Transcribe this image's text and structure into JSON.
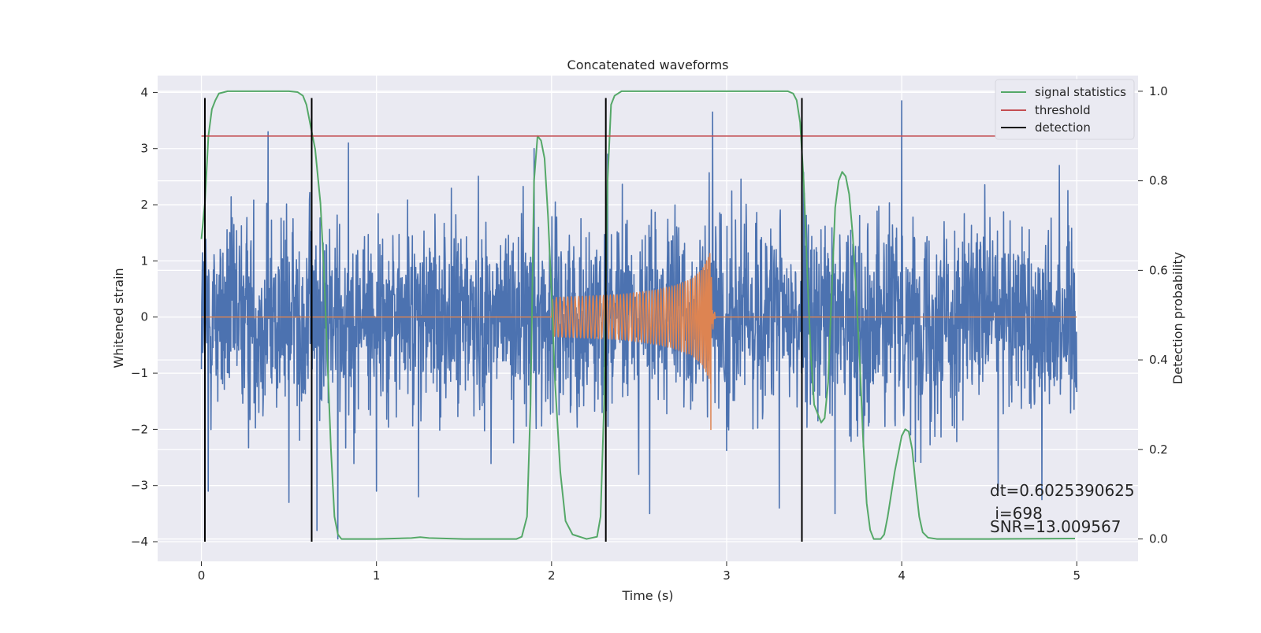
{
  "chart_data": {
    "type": "line",
    "title": "Concatenated waveforms",
    "xlabel": "Time (s)",
    "ylabel_left": "Whitened strain",
    "ylabel_right": "Detection probability",
    "xlim": [
      -0.25,
      5.35
    ],
    "ylim_left": [
      -4.35,
      4.3
    ],
    "ylim_right": [
      -0.05,
      1.035
    ],
    "x_ticks": [
      0,
      1,
      2,
      3,
      4,
      5
    ],
    "y_left_ticks": [
      4,
      3,
      2,
      1,
      0,
      -1,
      -2,
      -3,
      -4
    ],
    "y_right_ticks": [
      1.0,
      0.8,
      0.6,
      0.4,
      0.2,
      0.0
    ],
    "x_tick_labels": [
      "0",
      "1",
      "2",
      "3",
      "4",
      "5"
    ],
    "y_left_tick_labels": [
      "4",
      "3",
      "2",
      "1",
      "0",
      "−1",
      "−2",
      "−3",
      "−4"
    ],
    "y_right_tick_labels": [
      "1.0",
      "0.8",
      "0.6",
      "0.4",
      "0.2",
      "0.0"
    ],
    "grid": true,
    "legend_position": "top-right",
    "colors": {
      "background": "#eaeaf2",
      "grid": "#ffffff",
      "strain": "#4c72b0",
      "template": "#dd8452",
      "signal_statistics": "#55a868",
      "threshold": "#c44e52",
      "detection": "#000000"
    },
    "series": [
      {
        "name": "signal statistics",
        "axis": "right",
        "points": [
          [
            0.0,
            0.67
          ],
          [
            0.02,
            0.75
          ],
          [
            0.04,
            0.9
          ],
          [
            0.06,
            0.96
          ],
          [
            0.08,
            0.98
          ],
          [
            0.1,
            0.995
          ],
          [
            0.15,
            1.0
          ],
          [
            0.5,
            1.0
          ],
          [
            0.55,
            0.998
          ],
          [
            0.58,
            0.99
          ],
          [
            0.6,
            0.97
          ],
          [
            0.62,
            0.93
          ],
          [
            0.65,
            0.87
          ],
          [
            0.68,
            0.75
          ],
          [
            0.7,
            0.6
          ],
          [
            0.72,
            0.4
          ],
          [
            0.74,
            0.2
          ],
          [
            0.76,
            0.05
          ],
          [
            0.78,
            0.01
          ],
          [
            0.8,
            0.0
          ],
          [
            1.0,
            0.0
          ],
          [
            1.2,
            0.002
          ],
          [
            1.25,
            0.004
          ],
          [
            1.3,
            0.002
          ],
          [
            1.5,
            0.0
          ],
          [
            1.8,
            0.0
          ],
          [
            1.83,
            0.005
          ],
          [
            1.86,
            0.05
          ],
          [
            1.88,
            0.3
          ],
          [
            1.9,
            0.8
          ],
          [
            1.92,
            0.9
          ],
          [
            1.94,
            0.89
          ],
          [
            1.96,
            0.85
          ],
          [
            1.98,
            0.72
          ],
          [
            2.0,
            0.55
          ],
          [
            2.02,
            0.35
          ],
          [
            2.05,
            0.15
          ],
          [
            2.08,
            0.04
          ],
          [
            2.12,
            0.01
          ],
          [
            2.2,
            0.0
          ],
          [
            2.26,
            0.005
          ],
          [
            2.28,
            0.05
          ],
          [
            2.3,
            0.3
          ],
          [
            2.32,
            0.8
          ],
          [
            2.34,
            0.97
          ],
          [
            2.36,
            0.99
          ],
          [
            2.4,
            1.0
          ],
          [
            3.35,
            1.0
          ],
          [
            3.38,
            0.995
          ],
          [
            3.4,
            0.98
          ],
          [
            3.42,
            0.93
          ],
          [
            3.44,
            0.8
          ],
          [
            3.46,
            0.6
          ],
          [
            3.48,
            0.42
          ],
          [
            3.5,
            0.3
          ],
          [
            3.52,
            0.28
          ],
          [
            3.54,
            0.26
          ],
          [
            3.56,
            0.27
          ],
          [
            3.58,
            0.35
          ],
          [
            3.6,
            0.55
          ],
          [
            3.62,
            0.74
          ],
          [
            3.64,
            0.8
          ],
          [
            3.66,
            0.82
          ],
          [
            3.68,
            0.81
          ],
          [
            3.7,
            0.77
          ],
          [
            3.72,
            0.68
          ],
          [
            3.74,
            0.55
          ],
          [
            3.76,
            0.4
          ],
          [
            3.78,
            0.22
          ],
          [
            3.8,
            0.08
          ],
          [
            3.82,
            0.02
          ],
          [
            3.84,
            0.0
          ],
          [
            3.88,
            0.0
          ],
          [
            3.9,
            0.01
          ],
          [
            3.92,
            0.05
          ],
          [
            3.96,
            0.15
          ],
          [
            4.0,
            0.23
          ],
          [
            4.02,
            0.245
          ],
          [
            4.04,
            0.24
          ],
          [
            4.06,
            0.2
          ],
          [
            4.08,
            0.12
          ],
          [
            4.1,
            0.05
          ],
          [
            4.12,
            0.015
          ],
          [
            4.15,
            0.003
          ],
          [
            4.2,
            0.0
          ],
          [
            4.5,
            0.0
          ],
          [
            4.99,
            0.001
          ]
        ]
      },
      {
        "name": "threshold",
        "axis": "right",
        "points": [
          [
            0.0,
            0.9
          ],
          [
            5.1,
            0.9
          ]
        ]
      },
      {
        "name": "detection",
        "axis": "left",
        "x": [
          0.02,
          0.63,
          2.31,
          3.43
        ],
        "y_range": [
          -4,
          3.9
        ]
      },
      {
        "axis": "left",
        "sample_rate": 512,
        "range": [
          0,
          5
        ],
        "envelope": [
          [
            0.0,
            1.2
          ],
          [
            0.3,
            1.25
          ],
          [
            0.6,
            1.25
          ],
          [
            1.0,
            1.2
          ],
          [
            1.5,
            1.2
          ],
          [
            2.0,
            1.15
          ],
          [
            2.5,
            1.2
          ],
          [
            3.0,
            1.25
          ],
          [
            3.5,
            1.2
          ],
          [
            4.0,
            1.25
          ],
          [
            4.5,
            1.2
          ],
          [
            5.0,
            1.2
          ]
        ],
        "spikes": [
          [
            0.02,
            1.4
          ],
          [
            0.04,
            -3.1
          ],
          [
            0.38,
            3.3
          ],
          [
            0.5,
            -3.3
          ],
          [
            0.66,
            -3.8
          ],
          [
            0.78,
            -3.95
          ],
          [
            0.84,
            3.1
          ],
          [
            1.0,
            -3.1
          ],
          [
            1.24,
            -3.2
          ],
          [
            1.9,
            3.0
          ],
          [
            2.32,
            2.9
          ],
          [
            2.56,
            -3.5
          ],
          [
            2.92,
            3.65
          ],
          [
            3.3,
            -3.4
          ],
          [
            3.62,
            -3.5
          ],
          [
            4.0,
            3.85
          ],
          [
            4.55,
            -3.1
          ],
          [
            4.8,
            -3.25
          ],
          [
            4.9,
            2.7
          ]
        ]
      },
      {
        "axis": "left",
        "points_amplitude": [
          [
            2.0,
            0.3
          ],
          [
            2.02,
            0.35
          ],
          [
            2.2,
            0.37
          ],
          [
            2.4,
            0.4
          ],
          [
            2.6,
            0.48
          ],
          [
            2.7,
            0.55
          ],
          [
            2.8,
            0.68
          ],
          [
            2.86,
            0.85
          ],
          [
            2.9,
            1.1
          ],
          [
            2.91,
            1.2
          ],
          [
            2.92,
            -0.3
          ],
          [
            2.93,
            0.1
          ],
          [
            2.94,
            0.0
          ],
          [
            5.0,
            0.0
          ]
        ],
        "negative_peak": [
          2.91,
          -2.0
        ],
        "frequency_hz": [
          [
            2.0,
            45
          ],
          [
            2.5,
            55
          ],
          [
            2.8,
            70
          ],
          [
            2.9,
            110
          ]
        ]
      }
    ]
  },
  "annotation": {
    "line1": "dt=0.6025390625",
    "line2": " i=698",
    "line3": "SNR=13.009567"
  }
}
